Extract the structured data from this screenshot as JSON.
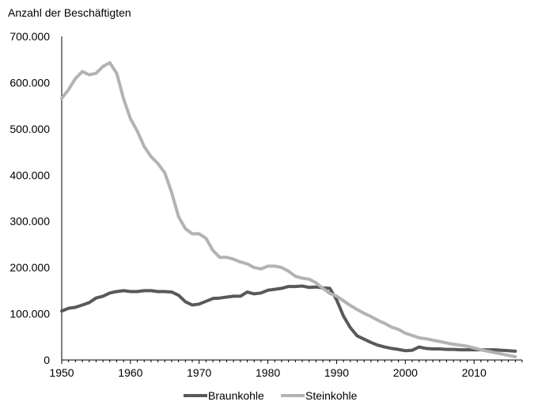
{
  "chart_data": {
    "type": "line",
    "ylabel": "Anzahl der Beschäftigten",
    "xlim": [
      1950,
      2017
    ],
    "ylim": [
      0,
      700000
    ],
    "x_ticks": [
      1950,
      1960,
      1970,
      1980,
      1990,
      2000,
      2010
    ],
    "y_ticks": [
      0,
      100000,
      200000,
      300000,
      400000,
      500000,
      600000,
      700000
    ],
    "y_tick_labels": [
      "0",
      "100.000",
      "200.000",
      "300.000",
      "400.000",
      "500.000",
      "600.000",
      "700.000"
    ],
    "grid": false,
    "legend_position": "bottom",
    "x": [
      1950,
      1951,
      1952,
      1953,
      1954,
      1955,
      1956,
      1957,
      1958,
      1959,
      1960,
      1961,
      1962,
      1963,
      1964,
      1965,
      1966,
      1967,
      1968,
      1969,
      1970,
      1971,
      1972,
      1973,
      1974,
      1975,
      1976,
      1977,
      1978,
      1979,
      1980,
      1981,
      1982,
      1983,
      1984,
      1985,
      1986,
      1987,
      1988,
      1989,
      1990,
      1991,
      1992,
      1993,
      1994,
      1995,
      1996,
      1997,
      1998,
      1999,
      2000,
      2001,
      2002,
      2003,
      2004,
      2005,
      2006,
      2007,
      2008,
      2009,
      2010,
      2011,
      2012,
      2013,
      2014,
      2015,
      2016
    ],
    "series": [
      {
        "name": "Braunkohle",
        "color": "#595959",
        "values": [
          106000,
          112000,
          114000,
          119000,
          124000,
          134000,
          138000,
          145000,
          148000,
          150000,
          148000,
          148000,
          150000,
          150000,
          148000,
          148000,
          147000,
          140000,
          126000,
          119000,
          121000,
          127000,
          133000,
          134000,
          136000,
          138000,
          138000,
          147000,
          143000,
          145000,
          151000,
          153000,
          155000,
          159000,
          159000,
          160000,
          157000,
          158000,
          156000,
          155000,
          130000,
          95000,
          70000,
          52000,
          45000,
          38000,
          32000,
          28000,
          25000,
          23000,
          20000,
          21000,
          28000,
          25000,
          24000,
          24000,
          23000,
          23000,
          22000,
          22000,
          22000,
          22000,
          22000,
          22000,
          21000,
          20000,
          19000
        ]
      },
      {
        "name": "Steinkohle",
        "color": "#b3b3b3",
        "values": [
          566000,
          585000,
          609000,
          624000,
          617000,
          620000,
          635000,
          643000,
          620000,
          565000,
          522000,
          495000,
          462000,
          440000,
          425000,
          405000,
          362000,
          310000,
          284000,
          273000,
          273000,
          263000,
          237000,
          222000,
          222000,
          218000,
          212000,
          208000,
          200000,
          197000,
          203000,
          203000,
          200000,
          192000,
          181000,
          177000,
          175000,
          167000,
          155000,
          144000,
          138000,
          128000,
          118000,
          109000,
          101000,
          94000,
          86000,
          79000,
          71000,
          66000,
          58000,
          53000,
          48000,
          46000,
          43000,
          40000,
          37000,
          34000,
          32000,
          30000,
          26000,
          22000,
          19000,
          16000,
          13000,
          10000,
          7000
        ]
      }
    ]
  }
}
